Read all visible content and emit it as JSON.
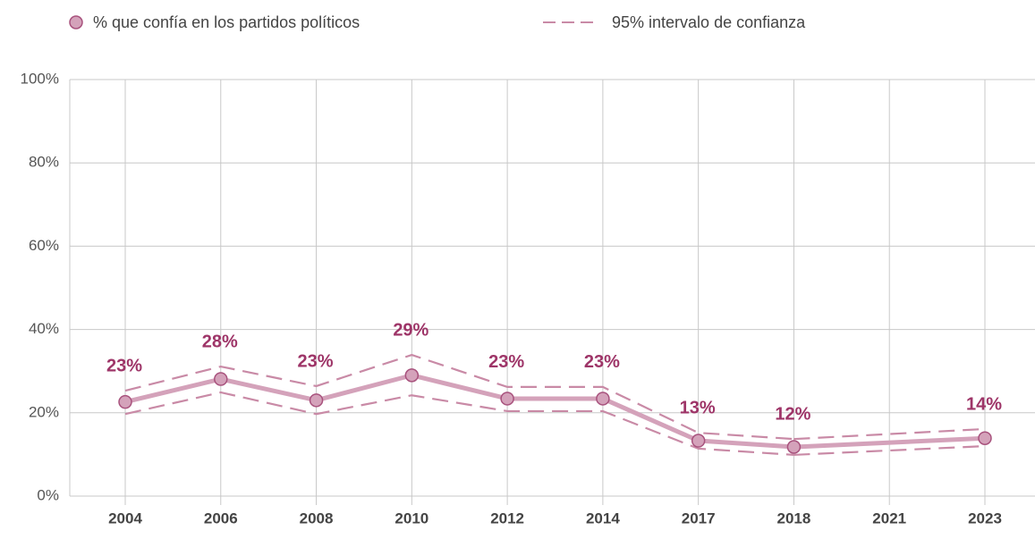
{
  "chart_data": {
    "type": "line",
    "categories": [
      "2004",
      "2006",
      "2008",
      "2010",
      "2012",
      "2014",
      "2017",
      "2018",
      "2021",
      "2023"
    ],
    "series": [
      {
        "name": "% que confía en los partidos políticos",
        "color": "#d4a2ba",
        "values": [
          22.6,
          28.1,
          23.0,
          29.0,
          23.4,
          23.4,
          13.3,
          11.8,
          null,
          13.9
        ],
        "value_labels": [
          "23%",
          "28%",
          "23%",
          "29%",
          "23%",
          "23%",
          "13%",
          "12%",
          null,
          "14%"
        ]
      }
    ],
    "interval": {
      "name": "95% intervalo de confianza",
      "color": "#c98aa6",
      "upper": [
        25.3,
        31.1,
        26.4,
        33.9,
        26.2,
        26.2,
        15.2,
        13.7,
        null,
        16.1
      ],
      "lower": [
        19.7,
        24.9,
        19.7,
        24.2,
        20.4,
        20.4,
        11.4,
        9.9,
        null,
        12.0
      ]
    },
    "ylim": [
      0,
      100
    ],
    "yticks": [
      {
        "value": 0,
        "label": "0%"
      },
      {
        "value": 20,
        "label": "20%"
      },
      {
        "value": 40,
        "label": "40%"
      },
      {
        "value": 60,
        "label": "60%"
      },
      {
        "value": 80,
        "label": "80%"
      },
      {
        "value": 100,
        "label": "100%"
      }
    ],
    "grid": true
  }
}
